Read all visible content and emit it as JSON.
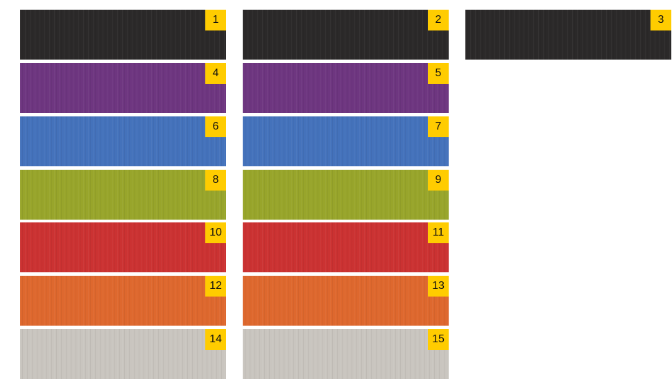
{
  "swatches": [
    {
      "label": "1",
      "color": "#2b2929"
    },
    {
      "label": "2",
      "color": "#2b2929"
    },
    {
      "label": "3",
      "color": "#2b2929"
    },
    {
      "label": "4",
      "color": "#6e3680"
    },
    {
      "label": "5",
      "color": "#6e3680"
    },
    {
      "label": "6",
      "color": "#4472bb"
    },
    {
      "label": "7",
      "color": "#4472bb"
    },
    {
      "label": "8",
      "color": "#98a52b"
    },
    {
      "label": "9",
      "color": "#98a52b"
    },
    {
      "label": "10",
      "color": "#cb3232"
    },
    {
      "label": "11",
      "color": "#cb3232"
    },
    {
      "label": "12",
      "color": "#de682e"
    },
    {
      "label": "13",
      "color": "#de682e"
    },
    {
      "label": "14",
      "color": "#c9c5bf"
    },
    {
      "label": "15",
      "color": "#c9c5bf"
    }
  ],
  "label_badge_color": "#ffcc00"
}
